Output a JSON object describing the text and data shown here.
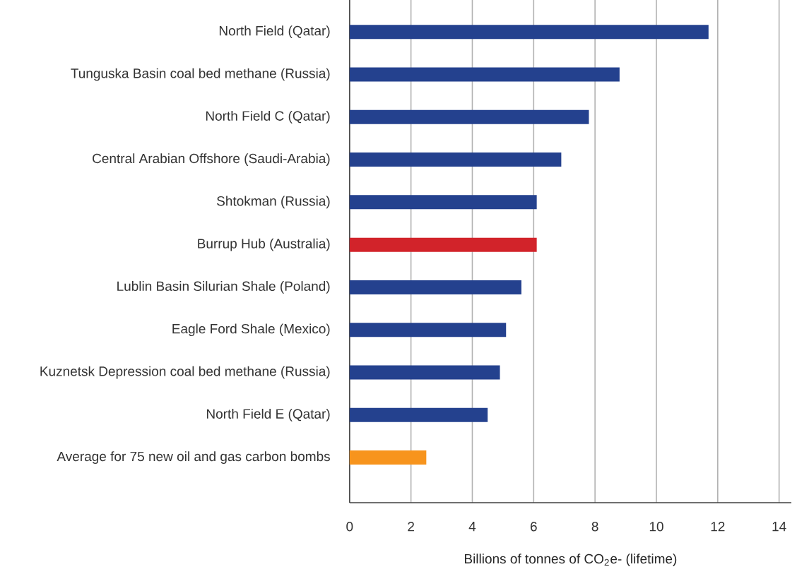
{
  "chart_data": {
    "type": "bar",
    "orientation": "horizontal",
    "categories": [
      "North Field (Qatar)",
      "Tunguska Basin coal bed methane (Russia)",
      "North Field C (Qatar)",
      "Central Arabian Offshore (Saudi-Arabia)",
      "Shtokman (Russia)",
      "Burrup Hub (Australia)",
      "Lublin Basin Silurian Shale (Poland)",
      "Eagle Ford Shale (Mexico)",
      "Kuznetsk Depression coal bed methane (Russia)",
      "North Field E (Qatar)",
      "Average for 75 new oil and gas carbon bombs"
    ],
    "values": [
      11.7,
      8.8,
      7.8,
      6.9,
      6.1,
      6.1,
      5.6,
      5.1,
      4.9,
      4.5,
      2.5
    ],
    "colors": [
      "#24418e",
      "#24418e",
      "#24418e",
      "#24418e",
      "#24418e",
      "#d2232a",
      "#24418e",
      "#24418e",
      "#24418e",
      "#24418e",
      "#f7941d"
    ],
    "xlabel": "Billions of tonnes of CO$_{2}$e- (lifetime)",
    "xlim": [
      0,
      14.4
    ],
    "xticks": [
      0,
      2,
      4,
      6,
      8,
      10,
      12,
      14
    ],
    "grid": "x"
  }
}
